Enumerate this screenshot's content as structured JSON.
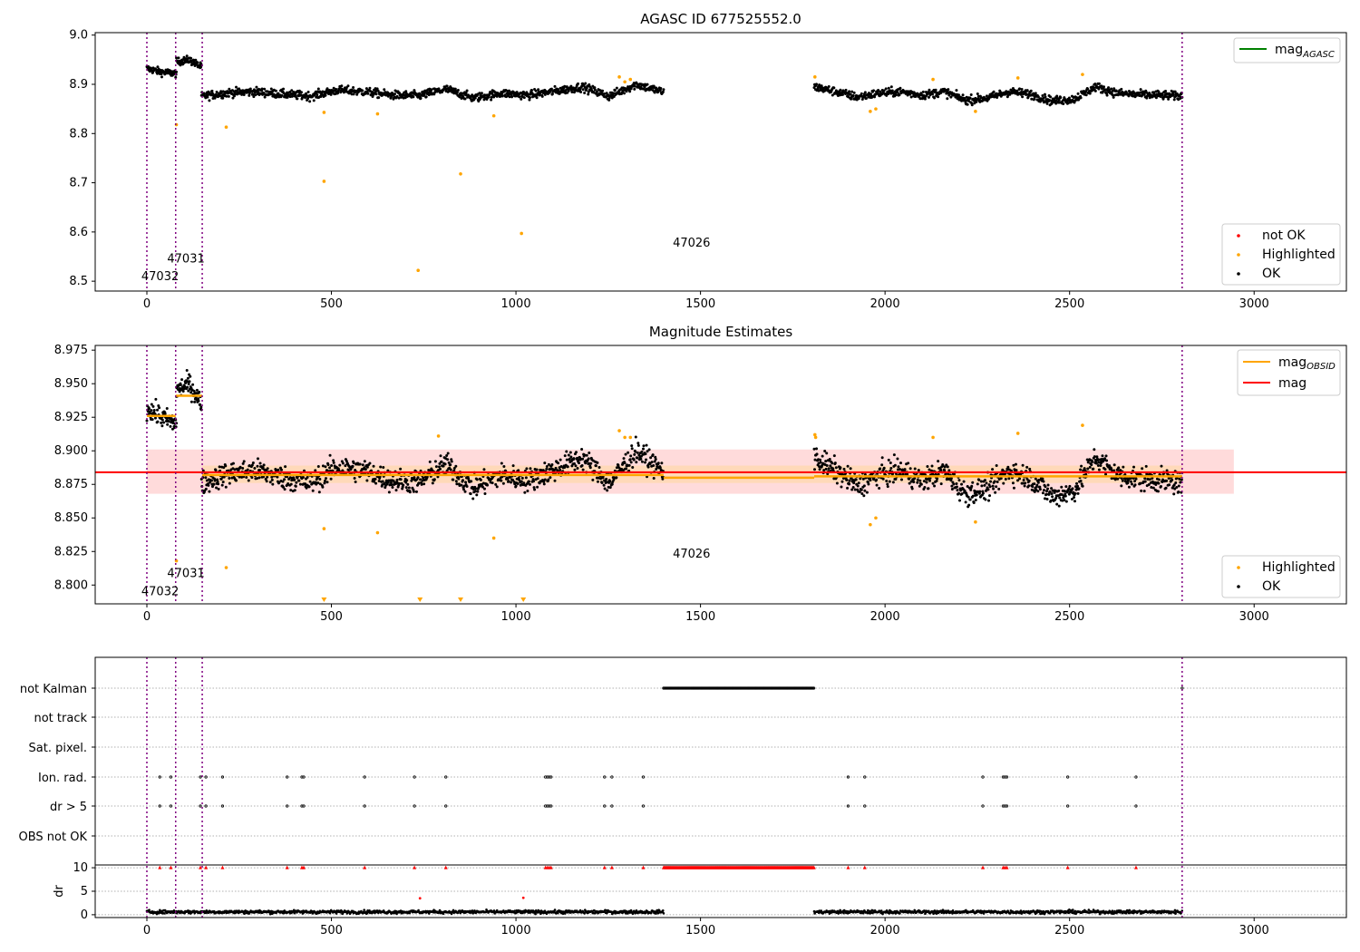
{
  "colors": {
    "ok": "#000000",
    "highlighted": "#ffa500",
    "not_ok": "#ff0000",
    "mag_agasc": "#008000",
    "mag_obsid": "#ffa500",
    "mag": "#ff0000",
    "interval_line": "#800080",
    "sigma_band_wide": "#ffcccc",
    "sigma_band_narrow": "#ffd8b0",
    "grid": "#b0b0b0"
  },
  "chart_data": [
    {
      "type": "scatter",
      "title": "AGASC ID 677525552.0",
      "xlabel": "",
      "ylabel": "",
      "xlim": [
        -140,
        3250
      ],
      "ylim": [
        8.48,
        9.005
      ],
      "xticks": [
        0,
        500,
        1000,
        1500,
        2000,
        2500,
        3000
      ],
      "xtick_labels": [
        "0",
        "500",
        "1000",
        "1500",
        "2000",
        "2500",
        "3000"
      ],
      "yticks": [
        8.5,
        8.6,
        8.7,
        8.8,
        8.9,
        9.0
      ],
      "ytick_labels": [
        "8.5",
        "8.6",
        "8.7",
        "8.8",
        "8.9",
        "9.0"
      ],
      "series": [
        {
          "name": "not OK",
          "color": "#ff0000",
          "points": []
        },
        {
          "name": "Highlighted",
          "color": "#ffa500",
          "points": [
            [
              80,
              8.818
            ],
            [
              215,
              8.813
            ],
            [
              480,
              8.843
            ],
            [
              480,
              8.703
            ],
            [
              625,
              8.84
            ],
            [
              735,
              8.522
            ],
            [
              850,
              8.718
            ],
            [
              940,
              8.836
            ],
            [
              1015,
              8.597
            ],
            [
              1280,
              8.915
            ],
            [
              1295,
              8.905
            ],
            [
              1310,
              8.91
            ],
            [
              1810,
              8.915
            ],
            [
              1960,
              8.845
            ],
            [
              1975,
              8.85
            ],
            [
              2130,
              8.91
            ],
            [
              2245,
              8.845
            ],
            [
              2360,
              8.913
            ],
            [
              2535,
              8.92
            ]
          ]
        },
        {
          "name": "OK",
          "color": "#000000",
          "segments": [
            {
              "x0": 0,
              "x1": 80,
              "n": 80,
              "levels": [
                8.932,
                8.925,
                8.922
              ],
              "noise": 0.007
            },
            {
              "x0": 80,
              "x1": 148,
              "n": 70,
              "levels": [
                8.945,
                8.95,
                8.935
              ],
              "noise": 0.007
            },
            {
              "x0": 148,
              "x1": 1400,
              "n": 1000,
              "levels": [
                8.876,
                8.883,
                8.885,
                8.88,
                8.876,
                8.888,
                8.885,
                8.878,
                8.877,
                8.89,
                8.872,
                8.882,
                8.878,
                8.886,
                8.895,
                8.876,
                8.9,
                8.884
              ],
              "noise": 0.008
            },
            {
              "x0": 1808,
              "x1": 2805,
              "n": 800,
              "levels": [
                8.895,
                8.885,
                8.874,
                8.882,
                8.885,
                8.878,
                8.885,
                8.868,
                8.872,
                8.885,
                8.88,
                8.866,
                8.87,
                8.895,
                8.882,
                8.879,
                8.878,
                8.876
              ],
              "noise": 0.008
            }
          ]
        }
      ],
      "legend_lines": [
        {
          "label": "mag",
          "sub": "AGASC",
          "color": "#008000"
        }
      ],
      "legend_points": [
        {
          "label": "not OK",
          "color": "#ff0000"
        },
        {
          "label": "Highlighted",
          "color": "#ffa500"
        },
        {
          "label": "OK",
          "color": "#000000"
        }
      ],
      "legend_lines_placement": "top-right",
      "legend_points_placement": "bottom-right",
      "vlines": [
        0,
        78,
        150,
        2805
      ],
      "annotations": [
        {
          "text": "47032",
          "x": -15,
          "y": 8.502
        },
        {
          "text": "47031",
          "x": 55,
          "y": 8.538
        },
        {
          "text": "47026",
          "x": 1425,
          "y": 8.57
        }
      ]
    },
    {
      "type": "scatter",
      "title": "Magnitude Estimates",
      "xlabel": "",
      "ylabel": "",
      "xlim": [
        -140,
        3250
      ],
      "ylim": [
        8.786,
        8.9785
      ],
      "xticks": [
        0,
        500,
        1000,
        1500,
        2000,
        2500,
        3000
      ],
      "xtick_labels": [
        "0",
        "500",
        "1000",
        "1500",
        "2000",
        "2500",
        "3000"
      ],
      "yticks": [
        8.8,
        8.825,
        8.85,
        8.875,
        8.9,
        8.925,
        8.95,
        8.975
      ],
      "ytick_labels": [
        "8.800",
        "8.825",
        "8.850",
        "8.875",
        "8.900",
        "8.925",
        "8.950",
        "8.975"
      ],
      "series": [
        {
          "name": "Highlighted",
          "color": "#ffa500",
          "points": [
            [
              80,
              8.818
            ],
            [
              215,
              8.813
            ],
            [
              480,
              8.842
            ],
            [
              625,
              8.839
            ],
            [
              790,
              8.911
            ],
            [
              940,
              8.835
            ],
            [
              1280,
              8.915
            ],
            [
              1295,
              8.91
            ],
            [
              1310,
              8.91
            ],
            [
              1810,
              8.912
            ],
            [
              1812,
              8.91
            ],
            [
              1960,
              8.845
            ],
            [
              1975,
              8.85
            ],
            [
              2130,
              8.91
            ],
            [
              2245,
              8.847
            ],
            [
              2360,
              8.913
            ],
            [
              2535,
              8.919
            ]
          ]
        },
        {
          "name": "OK",
          "color": "#000000",
          "segments": [
            {
              "x0": 0,
              "x1": 80,
              "n": 80,
              "levels": [
                8.932,
                8.925,
                8.92
              ],
              "noise": 0.007
            },
            {
              "x0": 80,
              "x1": 148,
              "n": 70,
              "levels": [
                8.945,
                8.95,
                8.935
              ],
              "noise": 0.007
            },
            {
              "x0": 148,
              "x1": 1400,
              "n": 1000,
              "levels": [
                8.876,
                8.883,
                8.885,
                8.88,
                8.876,
                8.888,
                8.885,
                8.878,
                8.877,
                8.89,
                8.872,
                8.882,
                8.878,
                8.886,
                8.895,
                8.876,
                8.9,
                8.884
              ],
              "noise": 0.008
            },
            {
              "x0": 1808,
              "x1": 2805,
              "n": 800,
              "levels": [
                8.895,
                8.885,
                8.874,
                8.882,
                8.885,
                8.878,
                8.885,
                8.868,
                8.872,
                8.885,
                8.88,
                8.866,
                8.87,
                8.895,
                8.882,
                8.879,
                8.878,
                8.876
              ],
              "noise": 0.008
            }
          ]
        }
      ],
      "offscale_markers": [
        480,
        740,
        850,
        1020
      ],
      "mag_obsid_steps": [
        {
          "x0": 0,
          "x1": 78,
          "y": 8.926
        },
        {
          "x0": 78,
          "x1": 150,
          "y": 8.941
        },
        {
          "x0": 150,
          "x1": 1400,
          "y": 8.882
        },
        {
          "x0": 1400,
          "x1": 1808,
          "y": 8.88
        },
        {
          "x0": 1808,
          "x1": 2805,
          "y": 8.881
        }
      ],
      "mag_line": {
        "y": 8.884,
        "x0": -140,
        "x1": 3250
      },
      "mag_band_wide": {
        "y0": 8.868,
        "y1": 8.901,
        "x0": 0,
        "x1": 2945
      },
      "mag_band_narrow": {
        "y0": 8.876,
        "y1": 8.889,
        "x0": 150,
        "x1": 2805
      },
      "legend_lines": [
        {
          "label": "mag",
          "sub": "OBSID",
          "color": "#ffa500"
        },
        {
          "label": "mag",
          "sub": "",
          "color": "#ff0000"
        }
      ],
      "legend_points": [
        {
          "label": "Highlighted",
          "color": "#ffa500"
        },
        {
          "label": "OK",
          "color": "#000000"
        }
      ],
      "legend_lines_placement": "top-right",
      "legend_points_placement": "bottom-right",
      "vlines": [
        0,
        78,
        150,
        2805
      ],
      "annotations": [
        {
          "text": "47032",
          "x": -15,
          "y": 8.7925
        },
        {
          "text": "47031",
          "x": 55,
          "y": 8.806
        },
        {
          "text": "47026",
          "x": 1425,
          "y": 8.8205
        }
      ]
    },
    {
      "type": "scatter",
      "title": "",
      "xlabel": "",
      "xlim": [
        -140,
        3250
      ],
      "xticks": [
        0,
        500,
        1000,
        1500,
        2000,
        2500,
        3000
      ],
      "xtick_labels": [
        "0",
        "500",
        "1000",
        "1500",
        "2000",
        "2500",
        "3000"
      ],
      "flag_rows": [
        "not Kalman",
        "not track",
        "Sat. pixel.",
        "Ion. rad.",
        "dr > 5",
        "OBS not OK"
      ],
      "flags": {
        "not Kalman": {
          "x0": 1400,
          "x1": 1808,
          "step": 2.2,
          "extra": [
            2805
          ]
        },
        "not track": [],
        "Sat. pixel.": [],
        "Ion. rad.": [
          35,
          65,
          145,
          160,
          205,
          380,
          420,
          425,
          590,
          725,
          810,
          1080,
          1085,
          1090,
          1095,
          1240,
          1260,
          1345,
          1900,
          1945,
          2265,
          2320,
          2325,
          2330,
          2495,
          2680
        ],
        "dr > 5": [
          35,
          65,
          145,
          160,
          205,
          380,
          420,
          425,
          590,
          725,
          810,
          1080,
          1085,
          1090,
          1095,
          1240,
          1260,
          1345,
          1900,
          1945,
          2265,
          2320,
          2325,
          2330,
          2495,
          2680
        ],
        "OBS not OK": []
      },
      "dr_ylabel": "dr",
      "dr_ylim": [
        -0.6,
        10.4
      ],
      "dr_yticks": [
        0,
        5,
        10
      ],
      "dr_ytick_labels": [
        "0",
        "5",
        "10"
      ],
      "dr_clip_points": [
        35,
        65,
        145,
        160,
        205,
        380,
        420,
        425,
        590,
        725,
        810,
        1080,
        1085,
        1090,
        1095,
        1240,
        1260,
        1345,
        1900,
        1945,
        2265,
        2320,
        2325,
        2330,
        2495,
        2680
      ],
      "dr_clip_range": {
        "x0": 1400,
        "x1": 1808,
        "step": 2.5
      },
      "dr_extra_red": [
        [
          740,
          3.5
        ],
        [
          1020,
          3.6
        ]
      ],
      "dr_baseline": {
        "segments": [
          [
            0,
            1400
          ],
          [
            1808,
            2805
          ]
        ],
        "mean": 0.6,
        "noise": 0.35
      },
      "vlines": [
        0,
        78,
        150,
        2805
      ]
    }
  ]
}
